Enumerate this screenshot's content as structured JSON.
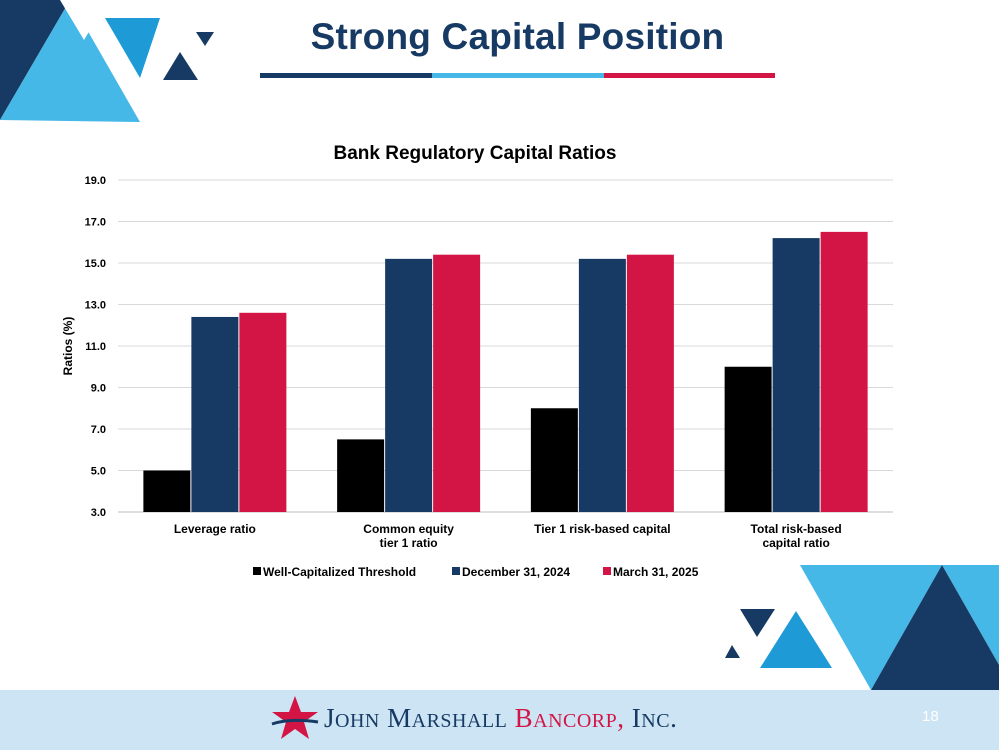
{
  "slide": {
    "title": "Strong Capital Position",
    "page_number": "18",
    "brand_colors": {
      "navy": "#163a63",
      "light_blue": "#46b8e8",
      "red": "#d31545",
      "pink": "#e94560"
    }
  },
  "footer": {
    "company_first": "John",
    "company_last": "Marshall",
    "company_bancorp": "Bancorp,",
    "company_inc": "Inc."
  },
  "chart_data": {
    "type": "bar",
    "title": "Bank Regulatory Capital Ratios",
    "xlabel": "",
    "ylabel": "Ratios (%)",
    "ylim": [
      3.0,
      19.0
    ],
    "yticks": [
      "3.0",
      "5.0",
      "7.0",
      "9.0",
      "11.0",
      "13.0",
      "15.0",
      "17.0",
      "19.0"
    ],
    "grid": true,
    "legend_position": "bottom",
    "categories": [
      [
        "Leverage ratio"
      ],
      [
        "Common equity",
        "tier 1 ratio"
      ],
      [
        "Tier 1 risk-based capital"
      ],
      [
        "Total risk-based",
        "capital ratio"
      ]
    ],
    "series": [
      {
        "name": "Well-Capitalized Threshold",
        "color": "#000000",
        "values": [
          5.0,
          6.5,
          8.0,
          10.0
        ]
      },
      {
        "name": "December 31, 2024",
        "color": "#163a63",
        "values": [
          12.4,
          15.2,
          15.2,
          16.2
        ]
      },
      {
        "name": "March 31, 2025",
        "color": "#d31545",
        "values": [
          12.6,
          15.4,
          15.4,
          16.5
        ]
      }
    ]
  }
}
